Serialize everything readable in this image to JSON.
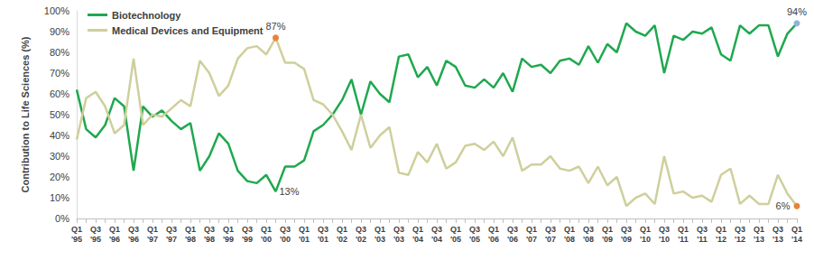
{
  "chart_data": {
    "type": "line",
    "y_label": "Contribution to Life Sciences (%)",
    "categories": [
      "Q1\n'95",
      null,
      "Q3\n'95",
      null,
      "Q1\n'96",
      null,
      "Q3\n'96",
      null,
      "Q1\n'97",
      null,
      "Q3\n'97",
      null,
      "Q1\n'98",
      null,
      "Q3\n'98",
      null,
      "Q1\n'99",
      null,
      "Q3\n'99",
      null,
      "Q1\n'00",
      null,
      "Q3\n'00",
      null,
      "Q1\n'01",
      null,
      "Q3\n'01",
      null,
      "Q1\n'02",
      null,
      "Q3\n'02",
      null,
      "Q1\n'03",
      null,
      "Q3\n'03",
      null,
      "Q1\n'04",
      null,
      "Q3\n'04",
      null,
      "Q1\n'05",
      null,
      "Q3\n'05",
      null,
      "Q1\n'06",
      null,
      "Q3\n'06",
      null,
      "Q1\n'07",
      null,
      "Q3\n'07",
      null,
      "Q1\n'08",
      null,
      "Q3\n'08",
      null,
      "Q1\n'09",
      null,
      "Q3\n'09",
      null,
      "Q1\n'10",
      null,
      "Q3\n'10",
      null,
      "Q1\n'11",
      null,
      "Q3\n'11",
      null,
      "Q1\n'12",
      null,
      "Q3\n'12",
      null,
      "Q1\n'13",
      null,
      "Q3\n'13",
      null,
      "Q1\n'14"
    ],
    "series": [
      {
        "name": "Biotechnology",
        "color": "#1fa84f",
        "values": [
          62,
          43,
          39,
          45,
          58,
          54,
          23,
          54,
          49,
          52,
          47,
          43,
          46,
          23,
          30,
          41,
          36,
          23,
          18,
          17,
          21,
          13,
          25,
          25,
          28,
          42,
          45,
          50,
          57,
          67,
          50,
          66,
          60,
          56,
          78,
          79,
          68,
          73,
          64,
          76,
          73,
          64,
          63,
          67,
          63,
          70,
          61,
          77,
          73,
          74,
          70,
          76,
          77,
          74,
          83,
          75,
          84,
          80,
          94,
          90,
          88,
          93,
          70,
          88,
          86,
          90,
          89,
          92,
          79,
          76,
          93,
          89,
          93,
          93,
          78,
          89,
          94
        ]
      },
      {
        "name": "Medical Devices and Equipment",
        "color": "#cfcf9c",
        "values": [
          38,
          58,
          61,
          54,
          41,
          45,
          77,
          45,
          50,
          49,
          53,
          57,
          54,
          76,
          70,
          59,
          64,
          77,
          82,
          83,
          79,
          87,
          75,
          75,
          72,
          57,
          55,
          50,
          42,
          33,
          50,
          34,
          40,
          44,
          22,
          21,
          32,
          27,
          36,
          24,
          27,
          35,
          36,
          33,
          37,
          30,
          39,
          23,
          26,
          26,
          30,
          24,
          23,
          25,
          17,
          25,
          16,
          20,
          6,
          10,
          12,
          7,
          30,
          12,
          13,
          10,
          11,
          8,
          21,
          24,
          7,
          11,
          7,
          7,
          21,
          12,
          6
        ]
      }
    ],
    "annotations": [
      {
        "series": "Medical Devices and Equipment",
        "index": 21,
        "text": "87%",
        "color": "#e8823a"
      },
      {
        "series": "Biotechnology",
        "index": 21,
        "text": "13%"
      },
      {
        "series": "Biotechnology",
        "index": 76,
        "text": "94%",
        "color": "#8fb4dc"
      },
      {
        "series": "Medical Devices and Equipment",
        "index": 76,
        "text": "6%",
        "color": "#e8823a"
      }
    ],
    "ylim": [
      0,
      100
    ],
    "yticks": [
      {
        "value": 0,
        "label": "0%"
      },
      {
        "value": 10,
        "label": "10%"
      },
      {
        "value": 20,
        "label": "20%"
      },
      {
        "value": 30,
        "label": "30%"
      },
      {
        "value": 40,
        "label": "40%"
      },
      {
        "value": 50,
        "label": "50%"
      },
      {
        "value": 60,
        "label": "60%"
      },
      {
        "value": 70,
        "label": "70%"
      },
      {
        "value": 80,
        "label": "80%"
      },
      {
        "value": 90,
        "label": "90%"
      },
      {
        "value": 100,
        "label": "100%"
      }
    ],
    "grid": false,
    "legend": "upper left"
  }
}
